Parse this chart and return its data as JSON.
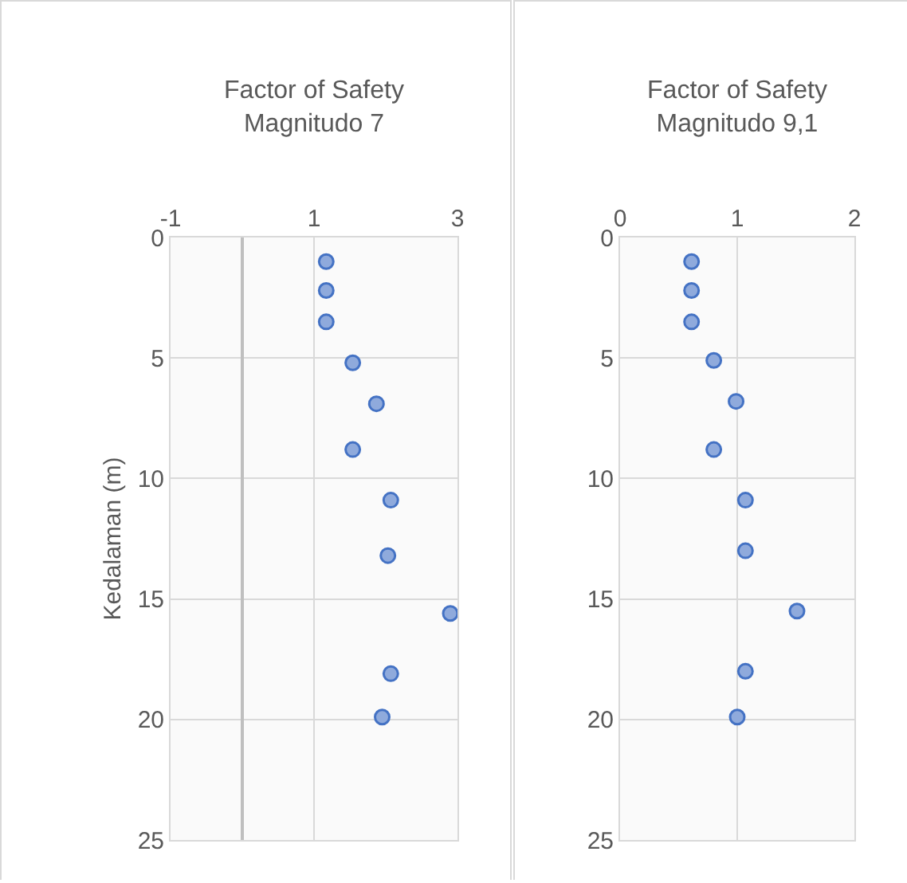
{
  "chart_data": [
    {
      "type": "scatter",
      "title": "Factor of Safety\nMagnitudo 7",
      "ylabel": "Kedalaman (m)",
      "marker": "circle",
      "grid": true,
      "xlim": [
        -1,
        3
      ],
      "xticks": [
        -1,
        1,
        3
      ],
      "ylim": [
        25,
        0
      ],
      "yticks": [
        0,
        5,
        10,
        15,
        20,
        25
      ],
      "series": [
        {
          "color": "#8faadc",
          "x": [
            1.17,
            1.17,
            1.17,
            1.54,
            1.87,
            1.54,
            2.07,
            2.03,
            2.9,
            2.07,
            1.95
          ],
          "values": [
            1.0,
            2.2,
            3.5,
            5.2,
            6.9,
            8.8,
            10.9,
            13.2,
            15.6,
            18.1,
            19.9
          ]
        }
      ]
    },
    {
      "type": "scatter",
      "title": "Factor of Safety\nMagnitudo 9,1",
      "marker": "circle",
      "grid": true,
      "xlim": [
        0,
        2
      ],
      "xticks": [
        0,
        1,
        2
      ],
      "ylim": [
        25,
        0
      ],
      "yticks": [
        0,
        5,
        10,
        15,
        20,
        25
      ],
      "series": [
        {
          "color": "#8faadc",
          "x": [
            0.61,
            0.61,
            0.61,
            0.8,
            0.99,
            0.8,
            1.07,
            1.07,
            1.51,
            1.07,
            1.0
          ],
          "values": [
            1.0,
            2.2,
            3.5,
            5.1,
            6.8,
            8.8,
            10.9,
            13.0,
            15.5,
            18.0,
            19.9
          ]
        }
      ]
    }
  ]
}
